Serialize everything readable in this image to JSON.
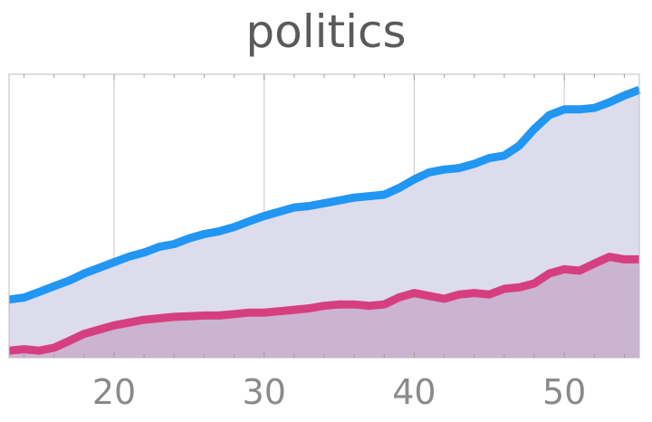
{
  "chart_data": {
    "type": "area",
    "title": "politics",
    "xlabel": "",
    "ylabel": "",
    "xlim": [
      13,
      55
    ],
    "ylim": [
      0,
      1
    ],
    "xticks": [
      20,
      30,
      40,
      50
    ],
    "grid": true,
    "legend": "none",
    "series": [
      {
        "color": "#2196f3",
        "fill": "#dcdcec",
        "x": [
          13,
          14,
          15,
          16,
          17,
          18,
          19,
          20,
          21,
          22,
          23,
          24,
          25,
          26,
          27,
          28,
          29,
          30,
          31,
          32,
          33,
          34,
          35,
          36,
          37,
          38,
          39,
          40,
          41,
          42,
          43,
          44,
          45,
          46,
          47,
          48,
          49,
          50,
          51,
          52,
          53,
          54,
          55
        ],
        "values": [
          0.205,
          0.212,
          0.232,
          0.252,
          0.272,
          0.297,
          0.317,
          0.337,
          0.357,
          0.371,
          0.391,
          0.401,
          0.421,
          0.436,
          0.446,
          0.461,
          0.481,
          0.5,
          0.515,
          0.53,
          0.535,
          0.545,
          0.555,
          0.565,
          0.57,
          0.575,
          0.599,
          0.629,
          0.654,
          0.664,
          0.669,
          0.684,
          0.704,
          0.713,
          0.748,
          0.807,
          0.856,
          0.876,
          0.876,
          0.881,
          0.901,
          0.925,
          0.945
        ]
      },
      {
        "color": "#d63f7f",
        "fill": "#cbb4d0",
        "x": [
          13,
          14,
          15,
          16,
          17,
          18,
          19,
          20,
          21,
          22,
          23,
          24,
          25,
          26,
          27,
          28,
          29,
          30,
          31,
          32,
          33,
          34,
          35,
          36,
          37,
          38,
          39,
          40,
          41,
          42,
          43,
          44,
          45,
          46,
          47,
          48,
          49,
          50,
          51,
          52,
          53,
          54,
          55
        ],
        "values": [
          0.025,
          0.03,
          0.025,
          0.035,
          0.059,
          0.084,
          0.099,
          0.114,
          0.124,
          0.134,
          0.139,
          0.144,
          0.146,
          0.149,
          0.149,
          0.154,
          0.159,
          0.159,
          0.164,
          0.169,
          0.174,
          0.183,
          0.188,
          0.188,
          0.183,
          0.188,
          0.213,
          0.228,
          0.218,
          0.208,
          0.223,
          0.228,
          0.223,
          0.243,
          0.248,
          0.262,
          0.297,
          0.312,
          0.307,
          0.332,
          0.356,
          0.347,
          0.347
        ]
      }
    ]
  }
}
